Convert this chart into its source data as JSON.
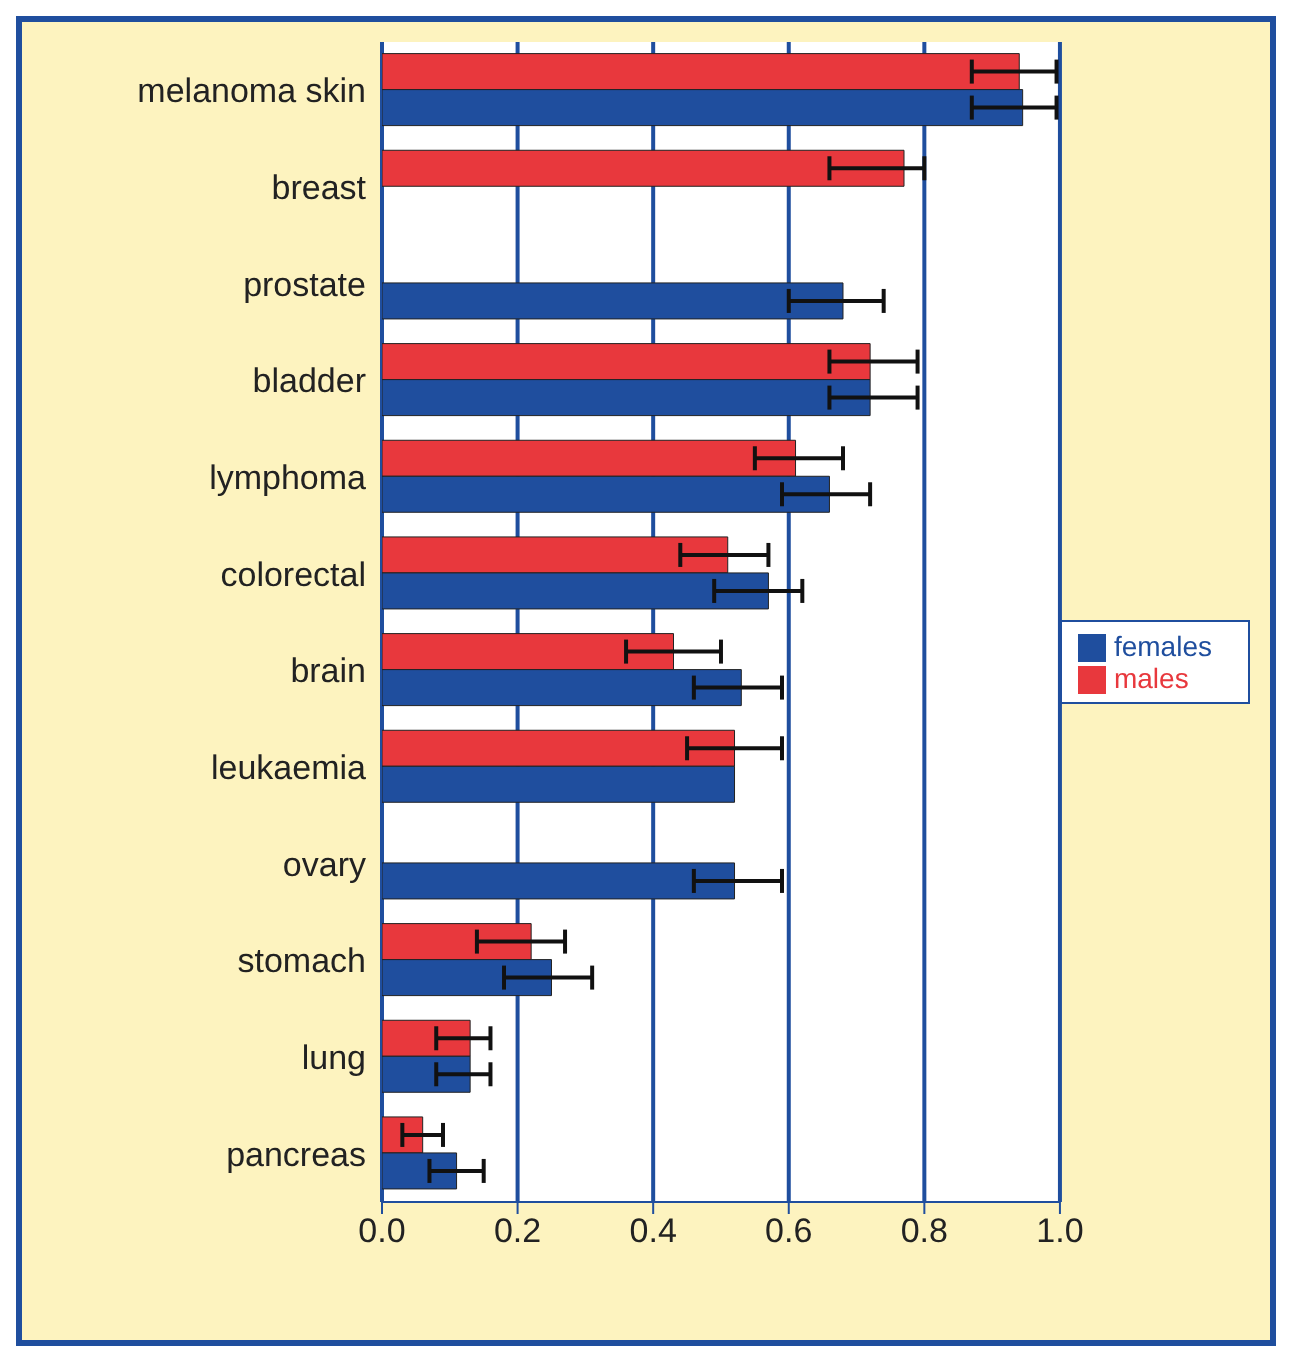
{
  "chart_data": {
    "type": "bar",
    "orientation": "horizontal",
    "categories": [
      "melanoma skin",
      "breast",
      "prostate",
      "bladder",
      "lymphoma",
      "colorectal",
      "brain",
      "leukaemia",
      "ovary",
      "stomach",
      "lung",
      "pancreas"
    ],
    "series": [
      {
        "name": "males",
        "color": "#e8383d",
        "values": [
          0.94,
          0.77,
          null,
          0.72,
          0.61,
          0.51,
          0.43,
          0.52,
          null,
          0.22,
          0.13,
          0.06
        ],
        "errors": [
          [
            0.87,
            0.995
          ],
          [
            0.66,
            0.8
          ],
          null,
          [
            0.66,
            0.79
          ],
          [
            0.55,
            0.68
          ],
          [
            0.44,
            0.57
          ],
          [
            0.36,
            0.5
          ],
          [
            0.45,
            0.59
          ],
          null,
          [
            0.14,
            0.27
          ],
          [
            0.08,
            0.16
          ],
          [
            0.03,
            0.09
          ]
        ]
      },
      {
        "name": "females",
        "color": "#1f4e9e",
        "values": [
          0.945,
          null,
          0.68,
          0.72,
          0.66,
          0.57,
          0.53,
          0.52,
          0.52,
          0.25,
          0.13,
          0.11
        ],
        "errors": [
          [
            0.87,
            0.995
          ],
          null,
          [
            0.6,
            0.74
          ],
          [
            0.66,
            0.79
          ],
          [
            0.59,
            0.72
          ],
          [
            0.49,
            0.62
          ],
          [
            0.46,
            0.59
          ],
          null,
          [
            0.46,
            0.59
          ],
          [
            0.18,
            0.31
          ],
          [
            0.08,
            0.16
          ],
          [
            0.07,
            0.15
          ]
        ]
      }
    ],
    "xlim": [
      0,
      1
    ],
    "xticks": [
      {
        "value": 0,
        "label": "0.0"
      },
      {
        "value": 0.2,
        "label": "0.2"
      },
      {
        "value": 0.4,
        "label": "0.4"
      },
      {
        "value": 0.6,
        "label": "0.6"
      },
      {
        "value": 0.8,
        "label": "0.8"
      },
      {
        "value": 1,
        "label": "1.0"
      }
    ],
    "grid": "x",
    "legend": "right"
  }
}
